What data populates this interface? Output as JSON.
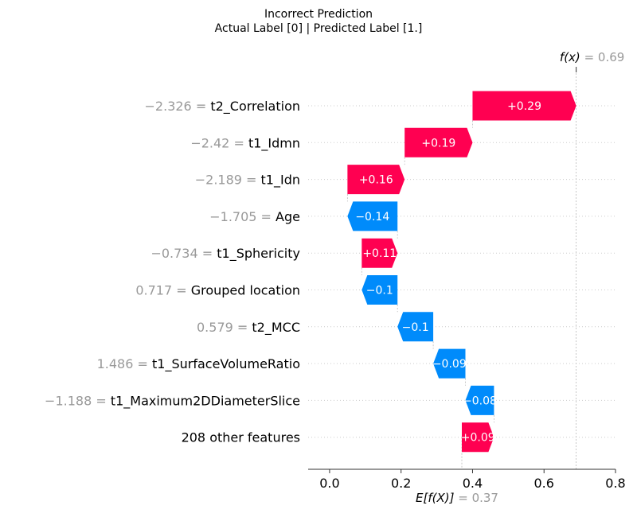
{
  "title_line1": "Incorrect Prediction",
  "title_line2": "Actual Label [0] | Predicted Label [1.]",
  "chart_data": {
    "type": "waterfall",
    "fx_label": "f(x)",
    "fx_value_label": " = 0.69",
    "fx": 0.69,
    "ex_label": "E[f(X)]",
    "ex_value_label": " = 0.37",
    "ex": 0.37,
    "xlim": [
      -0.06,
      0.8
    ],
    "xticks": [
      0.0,
      0.2,
      0.4,
      0.6,
      0.8
    ],
    "xtick_labels": [
      "0.0",
      "0.2",
      "0.4",
      "0.6",
      "0.8"
    ],
    "positive_color": "#ff0051",
    "negative_color": "#008bfb",
    "features": [
      {
        "value_label": "−2.326 = ",
        "name": "t2_Correlation",
        "start": 0.4,
        "end": 0.69,
        "label": "+0.29"
      },
      {
        "value_label": "−2.42 = ",
        "name": "t1_Idmn",
        "start": 0.21,
        "end": 0.4,
        "label": "+0.19"
      },
      {
        "value_label": "−2.189 = ",
        "name": "t1_Idn",
        "start": 0.05,
        "end": 0.21,
        "label": "+0.16"
      },
      {
        "value_label": "−1.705 = ",
        "name": "Age",
        "start": 0.19,
        "end": 0.05,
        "label": "−0.14"
      },
      {
        "value_label": "−0.734 = ",
        "name": "t1_Sphericity",
        "start": 0.09,
        "end": 0.19,
        "label": "+0.11"
      },
      {
        "value_label": "0.717 = ",
        "name": "Grouped location",
        "start": 0.19,
        "end": 0.09,
        "label": "−0.1"
      },
      {
        "value_label": "0.579 = ",
        "name": "t2_MCC",
        "start": 0.29,
        "end": 0.19,
        "label": "−0.1"
      },
      {
        "value_label": "1.486 = ",
        "name": "t1_SurfaceVolumeRatio",
        "start": 0.38,
        "end": 0.29,
        "label": "−0.09"
      },
      {
        "value_label": "−1.188 = ",
        "name": "t1_Maximum2DDiameterSlice",
        "start": 0.46,
        "end": 0.38,
        "label": "−0.08"
      },
      {
        "value_label": "",
        "name": "208 other features",
        "start": 0.37,
        "end": 0.46,
        "label": "+0.09"
      }
    ]
  }
}
